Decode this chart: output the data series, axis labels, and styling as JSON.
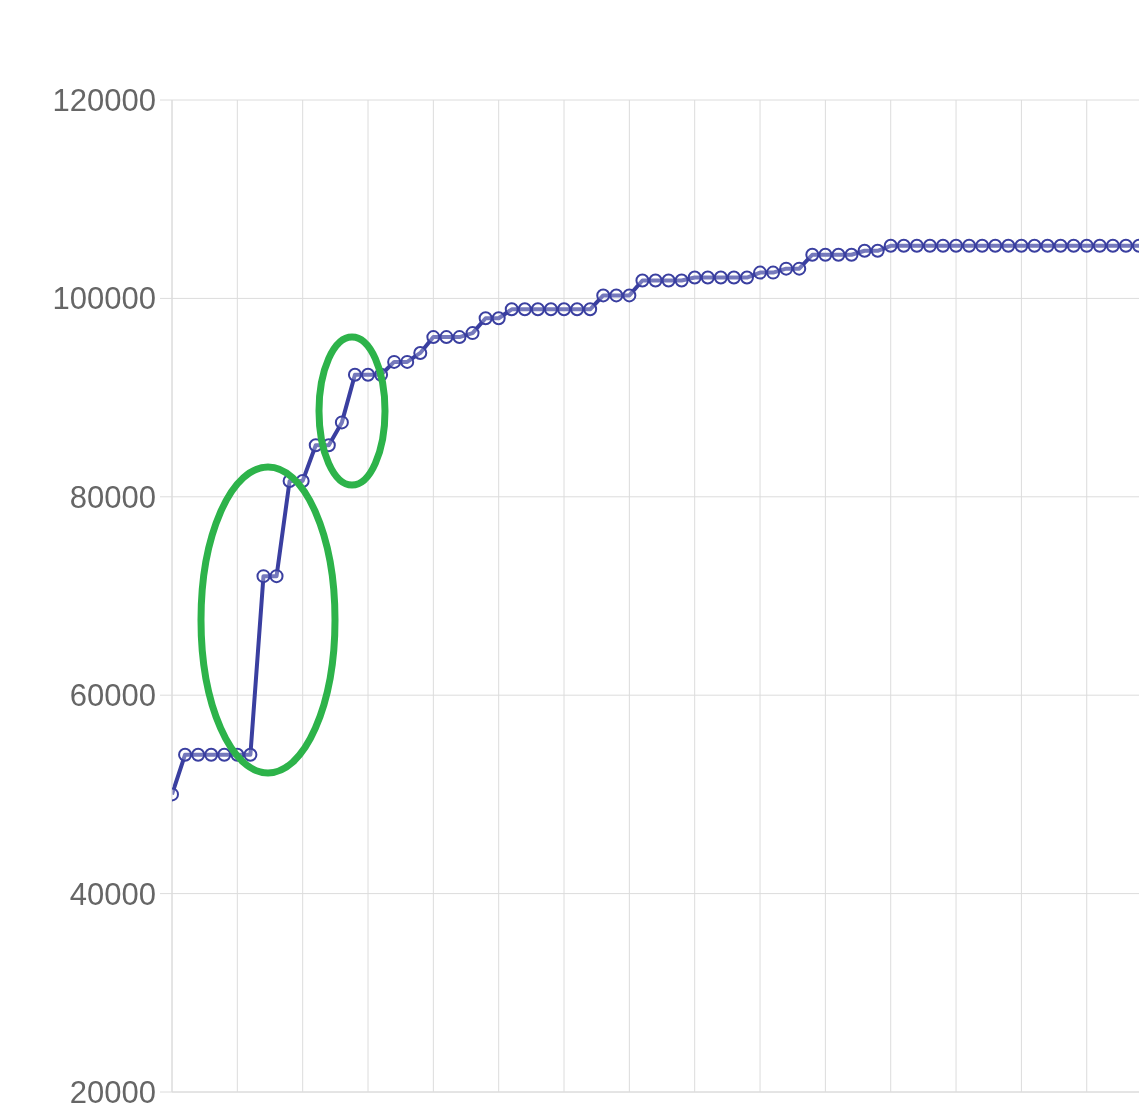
{
  "chart_data": {
    "type": "line",
    "categories": [
      null,
      null,
      null,
      null,
      null,
      null,
      null,
      null,
      null,
      null,
      null,
      null,
      null,
      null,
      null,
      null,
      null,
      null,
      null,
      null,
      null,
      null,
      null,
      null,
      null,
      null,
      null,
      null,
      null,
      null,
      null,
      null,
      null,
      null,
      null,
      null,
      null,
      null,
      null,
      null,
      null,
      null,
      null,
      null,
      null,
      null,
      null,
      null,
      null,
      null,
      null,
      null,
      null,
      null,
      null,
      null,
      null,
      null,
      null,
      null,
      null,
      null,
      null,
      null,
      null,
      null,
      null,
      null,
      null,
      null,
      null,
      null,
      null,
      null,
      null
    ],
    "series": [
      {
        "color": "#3a3fa0",
        "values": [
          50000,
          54000,
          54000,
          54000,
          54000,
          54000,
          54000,
          72000,
          72000,
          81600,
          81600,
          85200,
          85200,
          87500,
          92300,
          92300,
          92300,
          93600,
          93600,
          94500,
          96100,
          96100,
          96100,
          96500,
          98000,
          98000,
          98900,
          98900,
          98900,
          98900,
          98900,
          98900,
          98900,
          100300,
          100300,
          100300,
          101800,
          101800,
          101800,
          101800,
          102100,
          102100,
          102100,
          102100,
          102100,
          102600,
          102600,
          103000,
          103000,
          104400,
          104400,
          104400,
          104400,
          104800,
          104800,
          105300,
          105300,
          105300,
          105300,
          105300,
          105300,
          105300,
          105300,
          105300,
          105300,
          105300,
          105300,
          105300,
          105300,
          105300,
          105300,
          105300,
          105300,
          105300,
          105300
        ]
      }
    ],
    "ylim": [
      20000,
      120000
    ],
    "yticks": [
      20000,
      40000,
      60000,
      80000,
      100000,
      120000
    ],
    "grid": true,
    "marker": "circle",
    "line_style": "solid",
    "tick_labels": "y"
  }
}
